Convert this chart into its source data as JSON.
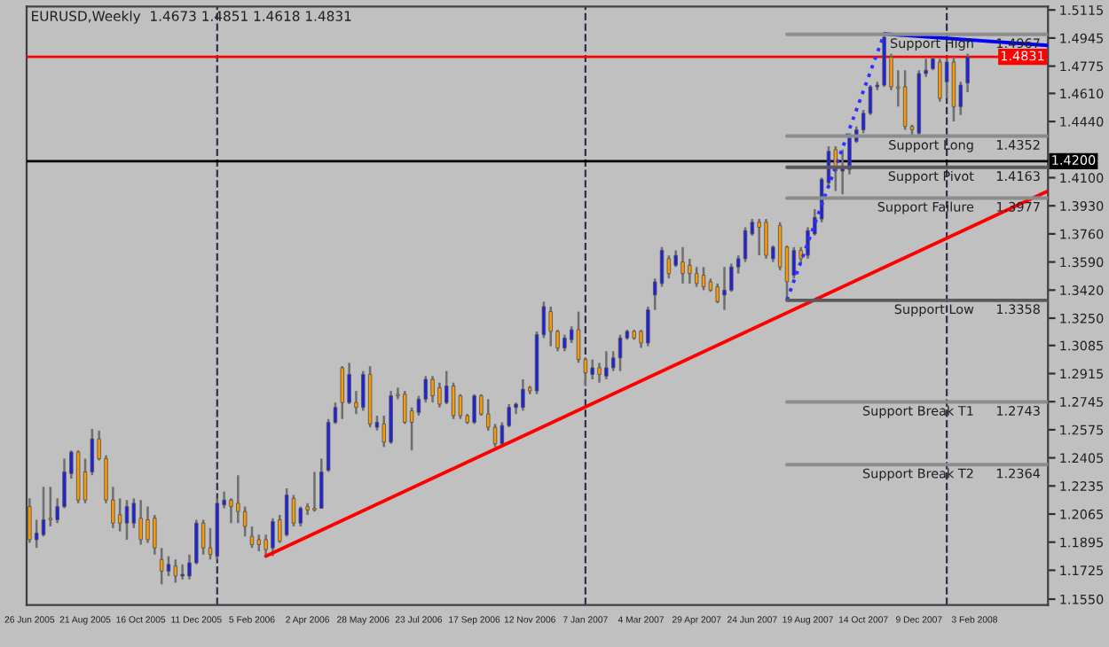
{
  "chart_data": {
    "type": "candlestick",
    "title": "EURUSD,Weekly  1.4673 1.4851 1.4618 1.4831",
    "x": [
      "2005-06-26",
      "2005-07-03",
      "2005-07-10",
      "2005-07-17",
      "2005-07-24",
      "2005-07-31",
      "2005-08-07",
      "2005-08-14",
      "2005-08-21",
      "2005-08-28",
      "2005-09-04",
      "2005-09-11",
      "2005-09-18",
      "2005-09-25",
      "2005-10-02",
      "2005-10-09",
      "2005-10-16",
      "2005-10-23",
      "2005-10-30",
      "2005-11-06",
      "2005-11-13",
      "2005-11-20",
      "2005-11-27",
      "2005-12-04",
      "2005-12-11",
      "2005-12-18",
      "2005-12-25",
      "2006-01-01",
      "2006-01-08",
      "2006-01-15",
      "2006-01-22",
      "2006-01-29",
      "2006-02-05",
      "2006-02-12",
      "2006-02-19",
      "2006-02-26",
      "2006-03-05",
      "2006-03-12",
      "2006-03-19",
      "2006-03-26",
      "2006-04-02",
      "2006-04-09",
      "2006-04-16",
      "2006-04-23",
      "2006-04-30",
      "2006-05-07",
      "2006-05-14",
      "2006-05-21",
      "2006-05-28",
      "2006-06-04",
      "2006-06-11",
      "2006-06-18",
      "2006-06-25",
      "2006-07-02",
      "2006-07-09",
      "2006-07-16",
      "2006-07-23",
      "2006-07-30",
      "2006-08-06",
      "2006-08-13",
      "2006-08-20",
      "2006-08-27",
      "2006-09-03",
      "2006-09-10",
      "2006-09-17",
      "2006-09-24",
      "2006-10-01",
      "2006-10-08",
      "2006-10-15",
      "2006-10-22",
      "2006-10-29",
      "2006-11-05",
      "2006-11-12",
      "2006-11-19",
      "2006-11-26",
      "2006-12-03",
      "2006-12-10",
      "2006-12-17",
      "2006-12-24",
      "2006-12-31",
      "2007-01-07",
      "2007-01-14",
      "2007-01-21",
      "2007-01-28",
      "2007-02-04",
      "2007-02-11",
      "2007-02-18",
      "2007-02-25",
      "2007-03-04",
      "2007-03-11",
      "2007-03-18",
      "2007-03-25",
      "2007-04-01",
      "2007-04-08",
      "2007-04-15",
      "2007-04-22",
      "2007-04-29",
      "2007-05-06",
      "2007-05-13",
      "2007-05-20",
      "2007-05-27",
      "2007-06-03",
      "2007-06-10",
      "2007-06-17",
      "2007-06-24",
      "2007-07-01",
      "2007-07-08",
      "2007-07-15",
      "2007-07-22",
      "2007-07-29",
      "2007-08-05",
      "2007-08-12",
      "2007-08-19",
      "2007-08-26",
      "2007-09-02",
      "2007-09-09",
      "2007-09-16",
      "2007-09-23",
      "2007-09-30",
      "2007-10-07",
      "2007-10-14",
      "2007-10-21",
      "2007-10-28",
      "2007-11-04",
      "2007-11-11",
      "2007-11-18",
      "2007-11-25",
      "2007-12-02",
      "2007-12-09",
      "2007-12-16",
      "2007-12-23",
      "2007-12-30",
      "2008-01-06",
      "2008-01-13",
      "2008-01-20",
      "2008-01-27"
    ],
    "ohlc": [
      [
        1.211,
        1.216,
        1.189,
        1.191
      ],
      [
        1.191,
        1.203,
        1.186,
        1.195
      ],
      [
        1.194,
        1.223,
        1.193,
        1.203
      ],
      [
        1.204,
        1.223,
        1.199,
        1.203
      ],
      [
        1.203,
        1.216,
        1.201,
        1.211
      ],
      [
        1.211,
        1.24,
        1.21,
        1.232
      ],
      [
        1.231,
        1.245,
        1.228,
        1.244
      ],
      [
        1.244,
        1.245,
        1.213,
        1.215
      ],
      [
        1.232,
        1.24,
        1.213,
        1.215
      ],
      [
        1.232,
        1.258,
        1.23,
        1.252
      ],
      [
        1.252,
        1.257,
        1.239,
        1.24
      ],
      [
        1.24,
        1.242,
        1.213,
        1.215
      ],
      [
        1.215,
        1.223,
        1.198,
        1.201
      ],
      [
        1.206,
        1.216,
        1.196,
        1.201
      ],
      [
        1.201,
        1.215,
        1.191,
        1.211
      ],
      [
        1.201,
        1.216,
        1.198,
        1.213
      ],
      [
        1.204,
        1.215,
        1.188,
        1.191
      ],
      [
        1.203,
        1.211,
        1.189,
        1.191
      ],
      [
        1.204,
        1.206,
        1.182,
        1.186
      ],
      [
        1.179,
        1.186,
        1.164,
        1.172
      ],
      [
        1.172,
        1.181,
        1.169,
        1.176
      ],
      [
        1.175,
        1.179,
        1.165,
        1.169
      ],
      [
        1.169,
        1.176,
        1.167,
        1.17
      ],
      [
        1.169,
        1.182,
        1.167,
        1.177
      ],
      [
        1.177,
        1.203,
        1.176,
        1.201
      ],
      [
        1.201,
        1.203,
        1.182,
        1.186
      ],
      [
        1.186,
        1.198,
        1.179,
        1.182
      ],
      [
        1.181,
        1.216,
        1.179,
        1.213
      ],
      [
        1.212,
        1.22,
        1.21,
        1.215
      ],
      [
        1.215,
        1.216,
        1.201,
        1.211
      ],
      [
        1.213,
        1.23,
        1.201,
        1.208
      ],
      [
        1.208,
        1.211,
        1.193,
        1.199
      ],
      [
        1.193,
        1.199,
        1.186,
        1.188
      ],
      [
        1.191,
        1.194,
        1.184,
        1.188
      ],
      [
        1.191,
        1.194,
        1.181,
        1.185
      ],
      [
        1.186,
        1.204,
        1.181,
        1.202
      ],
      [
        1.203,
        1.206,
        1.189,
        1.19
      ],
      [
        1.194,
        1.222,
        1.193,
        1.218
      ],
      [
        1.216,
        1.218,
        1.199,
        1.201
      ],
      [
        1.201,
        1.211,
        1.199,
        1.21
      ],
      [
        1.211,
        1.213,
        1.206,
        1.209
      ],
      [
        1.21,
        1.232,
        1.208,
        1.209
      ],
      [
        1.21,
        1.24,
        1.21,
        1.232
      ],
      [
        1.233,
        1.264,
        1.232,
        1.262
      ],
      [
        1.262,
        1.274,
        1.261,
        1.271
      ],
      [
        1.295,
        1.296,
        1.264,
        1.274
      ],
      [
        1.274,
        1.298,
        1.273,
        1.291
      ],
      [
        1.274,
        1.281,
        1.267,
        1.271
      ],
      [
        1.271,
        1.293,
        1.269,
        1.291
      ],
      [
        1.291,
        1.296,
        1.259,
        1.261
      ],
      [
        1.259,
        1.266,
        1.257,
        1.262
      ],
      [
        1.261,
        1.266,
        1.247,
        1.25
      ],
      [
        1.25,
        1.281,
        1.249,
        1.278
      ],
      [
        1.279,
        1.283,
        1.276,
        1.278
      ],
      [
        1.279,
        1.281,
        1.261,
        1.262
      ],
      [
        1.269,
        1.271,
        1.245,
        1.262
      ],
      [
        1.268,
        1.278,
        1.266,
        1.276
      ],
      [
        1.276,
        1.29,
        1.274,
        1.288
      ],
      [
        1.288,
        1.29,
        1.274,
        1.278
      ],
      [
        1.283,
        1.286,
        1.271,
        1.273
      ],
      [
        1.274,
        1.293,
        1.273,
        1.284
      ],
      [
        1.284,
        1.286,
        1.264,
        1.266
      ],
      [
        1.278,
        1.279,
        1.264,
        1.266
      ],
      [
        1.266,
        1.267,
        1.261,
        1.262
      ],
      [
        1.262,
        1.279,
        1.261,
        1.278
      ],
      [
        1.278,
        1.279,
        1.266,
        1.267
      ],
      [
        1.267,
        1.276,
        1.257,
        1.259
      ],
      [
        1.259,
        1.261,
        1.247,
        1.249
      ],
      [
        1.249,
        1.262,
        1.248,
        1.26
      ],
      [
        1.26,
        1.273,
        1.259,
        1.271
      ],
      [
        1.271,
        1.274,
        1.267,
        1.273
      ],
      [
        1.271,
        1.288,
        1.269,
        1.282
      ],
      [
        1.283,
        1.284,
        1.279,
        1.281
      ],
      [
        1.281,
        1.317,
        1.279,
        1.315
      ],
      [
        1.315,
        1.335,
        1.313,
        1.332
      ],
      [
        1.329,
        1.332,
        1.308,
        1.317
      ],
      [
        1.317,
        1.318,
        1.305,
        1.307
      ],
      [
        1.307,
        1.315,
        1.305,
        1.313
      ],
      [
        1.312,
        1.32,
        1.31,
        1.318
      ],
      [
        1.318,
        1.329,
        1.298,
        1.3
      ],
      [
        1.3,
        1.301,
        1.284,
        1.292
      ],
      [
        1.291,
        1.3,
        1.288,
        1.295
      ],
      [
        1.295,
        1.298,
        1.286,
        1.291
      ],
      [
        1.29,
        1.305,
        1.288,
        1.295
      ],
      [
        1.295,
        1.305,
        1.293,
        1.301
      ],
      [
        1.301,
        1.315,
        1.293,
        1.313
      ],
      [
        1.313,
        1.318,
        1.312,
        1.317
      ],
      [
        1.317,
        1.318,
        1.312,
        1.313
      ],
      [
        1.317,
        1.318,
        1.307,
        1.31
      ],
      [
        1.31,
        1.332,
        1.308,
        1.33
      ],
      [
        1.339,
        1.349,
        1.33,
        1.347
      ],
      [
        1.346,
        1.368,
        1.344,
        1.366
      ],
      [
        1.361,
        1.363,
        1.349,
        1.352
      ],
      [
        1.357,
        1.366,
        1.356,
        1.363
      ],
      [
        1.359,
        1.368,
        1.346,
        1.352
      ],
      [
        1.357,
        1.361,
        1.346,
        1.352
      ],
      [
        1.352,
        1.356,
        1.344,
        1.346
      ],
      [
        1.351,
        1.356,
        1.342,
        1.344
      ],
      [
        1.347,
        1.349,
        1.341,
        1.342
      ],
      [
        1.344,
        1.346,
        1.334,
        1.335
      ],
      [
        1.339,
        1.356,
        1.33,
        1.342
      ],
      [
        1.342,
        1.358,
        1.341,
        1.356
      ],
      [
        1.356,
        1.363,
        1.352,
        1.361
      ],
      [
        1.361,
        1.38,
        1.359,
        1.378
      ],
      [
        1.376,
        1.385,
        1.375,
        1.383
      ],
      [
        1.383,
        1.385,
        1.363,
        1.38
      ],
      [
        1.383,
        1.385,
        1.361,
        1.363
      ],
      [
        1.361,
        1.369,
        1.359,
        1.368
      ],
      [
        1.381,
        1.383,
        1.354,
        1.356
      ],
      [
        1.368,
        1.369,
        1.336,
        1.347
      ],
      [
        1.351,
        1.368,
        1.349,
        1.366
      ],
      [
        1.366,
        1.368,
        1.358,
        1.361
      ],
      [
        1.363,
        1.38,
        1.361,
        1.378
      ],
      [
        1.376,
        1.391,
        1.375,
        1.386
      ],
      [
        1.385,
        1.41,
        1.383,
        1.409
      ],
      [
        1.407,
        1.429,
        1.405,
        1.426
      ],
      [
        1.427,
        1.429,
        1.402,
        1.414
      ],
      [
        1.414,
        1.427,
        1.4,
        1.417
      ],
      [
        1.415,
        1.437,
        1.412,
        1.434
      ],
      [
        1.432,
        1.441,
        1.431,
        1.439
      ],
      [
        1.439,
        1.451,
        1.437,
        1.449
      ],
      [
        1.449,
        1.466,
        1.448,
        1.465
      ],
      [
        1.465,
        1.468,
        1.463,
        1.466
      ],
      [
        1.466,
        1.497,
        1.465,
        1.495
      ],
      [
        1.483,
        1.485,
        1.463,
        1.465
      ],
      [
        1.465,
        1.475,
        1.453,
        1.464
      ],
      [
        1.465,
        1.475,
        1.439,
        1.441
      ],
      [
        1.441,
        1.442,
        1.435,
        1.439
      ],
      [
        1.437,
        1.475,
        1.436,
        1.473
      ],
      [
        1.473,
        1.482,
        1.471,
        1.475
      ],
      [
        1.476,
        1.483,
        1.475,
        1.482
      ],
      [
        1.48,
        1.482,
        1.456,
        1.458
      ],
      [
        1.468,
        1.482,
        1.458,
        1.48
      ],
      [
        1.48,
        1.483,
        1.444,
        1.453
      ],
      [
        1.453,
        1.468,
        1.448,
        1.466
      ],
      [
        1.4673,
        1.4851,
        1.4618,
        1.4831
      ]
    ],
    "colors": [
      "#ff9900",
      "#2020e0",
      "#2020e0",
      "#ff9900",
      "#2020e0",
      "#2020e0",
      "#2020e0",
      "#ff9900",
      "#ff9900",
      "#2020e0",
      "#ff9900",
      "#ff9900",
      "#ff9900",
      "#ff9900",
      "#2020e0",
      "#2020e0",
      "#ff9900",
      "#ff9900",
      "#ff9900",
      "#ff9900",
      "#2020e0",
      "#ff9900",
      "#2020e0",
      "#2020e0",
      "#2020e0",
      "#ff9900",
      "#ff9900",
      "#2020e0",
      "#2020e0",
      "#ff9900",
      "#ff9900",
      "#ff9900",
      "#ff9900",
      "#ff9900",
      "#ff9900",
      "#2020e0",
      "#ff9900",
      "#2020e0",
      "#ff9900",
      "#2020e0",
      "#ff9900",
      "#ff9900",
      "#2020e0",
      "#2020e0",
      "#2020e0",
      "#ff9900",
      "#2020e0",
      "#ff9900",
      "#2020e0",
      "#ff9900",
      "#2020e0",
      "#ff9900",
      "#2020e0",
      "#ff9900",
      "#ff9900",
      "#ff9900",
      "#2020e0",
      "#2020e0",
      "#ff9900",
      "#ff9900",
      "#2020e0",
      "#ff9900",
      "#ff9900",
      "#ff9900",
      "#2020e0",
      "#ff9900",
      "#ff9900",
      "#ff9900",
      "#2020e0",
      "#2020e0",
      "#2020e0",
      "#2020e0",
      "#ff9900",
      "#2020e0",
      "#2020e0",
      "#ff9900",
      "#ff9900",
      "#2020e0",
      "#2020e0",
      "#ff9900",
      "#ff9900",
      "#2020e0",
      "#ff9900",
      "#2020e0",
      "#2020e0",
      "#2020e0",
      "#2020e0",
      "#ff9900",
      "#ff9900",
      "#2020e0",
      "#2020e0",
      "#2020e0",
      "#ff9900",
      "#2020e0",
      "#ff9900",
      "#ff9900",
      "#ff9900",
      "#ff9900",
      "#ff9900",
      "#ff9900",
      "#2020e0",
      "#2020e0",
      "#2020e0",
      "#2020e0",
      "#2020e0",
      "#ff9900",
      "#ff9900",
      "#2020e0",
      "#ff9900",
      "#ff9900",
      "#2020e0",
      "#ff9900",
      "#2020e0",
      "#2020e0",
      "#2020e0",
      "#2020e0",
      "#ff9900",
      "#2020e0",
      "#2020e0",
      "#2020e0",
      "#2020e0",
      "#2020e0",
      "#2020e0",
      "#2020e0",
      "#ff9900",
      "#ff9900",
      "#ff9900",
      "#ff9900",
      "#2020e0",
      "#2020e0",
      "#2020e0",
      "#ff9900",
      "#2020e0",
      "#ff9900",
      "#2020e0",
      "#2020e0"
    ],
    "series": [
      {
        "type": "line",
        "color": "#ff0000",
        "x": [
          "2006-02-19",
          "2008-04-17"
        ],
        "values": [
          1.181,
          1.402
        ]
      },
      {
        "type": "line",
        "color": "#0000ff",
        "x": [
          "2007-11-04",
          "2008-04-17"
        ],
        "values": [
          1.497,
          1.49
        ]
      },
      {
        "type": "line",
        "color": "#3030ff",
        "line_style": "dotted",
        "x": [
          "2007-07-29",
          "2007-11-04"
        ],
        "values": [
          1.336,
          1.497
        ]
      },
      {
        "type": "line",
        "name": "Support High",
        "color": "#8c8c8c",
        "x": [
          "2007-07-29",
          "2008-04-17"
        ],
        "values": [
          1.4967,
          1.4967
        ],
        "value_labels": [
          null,
          "1.4967"
        ]
      },
      {
        "type": "line",
        "name": "Support Long",
        "color": "#8c8c8c",
        "x": [
          "2007-07-29",
          "2008-04-17"
        ],
        "values": [
          1.4352,
          1.4352
        ],
        "value_labels": [
          null,
          "1.4352"
        ]
      },
      {
        "type": "line",
        "name": "Support Pivot",
        "color": "#5a5a5a",
        "x": [
          "2007-07-29",
          "2008-04-17"
        ],
        "values": [
          1.4163,
          1.4163
        ],
        "value_labels": [
          null,
          "1.4163"
        ]
      },
      {
        "type": "line",
        "name": "Support Failure",
        "color": "#8c8c8c",
        "x": [
          "2007-07-29",
          "2008-04-17"
        ],
        "values": [
          1.3977,
          1.3977
        ],
        "value_labels": [
          null,
          "1.3977"
        ]
      },
      {
        "type": "line",
        "name": "Support Low",
        "color": "#5a5a5a",
        "x": [
          "2007-07-29",
          "2008-04-17"
        ],
        "values": [
          1.3358,
          1.3358
        ],
        "value_labels": [
          null,
          "1.3358"
        ]
      },
      {
        "type": "line",
        "name": "Support Break T1",
        "color": "#8c8c8c",
        "x": [
          "2007-07-29",
          "2008-04-17"
        ],
        "values": [
          1.2743,
          1.2743
        ],
        "value_labels": [
          null,
          "1.2743"
        ]
      },
      {
        "type": "line",
        "name": "Support Break T2",
        "color": "#8c8c8c",
        "x": [
          "2007-07-29",
          "2008-04-17"
        ],
        "values": [
          1.2364,
          1.2364
        ],
        "value_labels": [
          null,
          "1.2364"
        ]
      }
    ],
    "ref_lines": [
      {
        "axis": "y",
        "value": 1.4831,
        "label": "1.4831",
        "color": "#ff0000"
      },
      {
        "axis": "y",
        "value": 1.42,
        "label": "1.4200",
        "color": "#000000"
      },
      {
        "axis": "x",
        "value": "2006-01-01",
        "color": "#303050",
        "line_style": "dashed"
      },
      {
        "axis": "x",
        "value": "2007-01-07",
        "color": "#303050",
        "line_style": "dashed"
      },
      {
        "axis": "x",
        "value": "2008-01-06",
        "color": "#303050",
        "line_style": "dashed"
      }
    ],
    "xlim": [
      "2005-06-23",
      "2008-04-17"
    ],
    "xticks": [
      {
        "value": "2005-06-26",
        "label": "26 Jun 2005"
      },
      {
        "value": "2005-08-21",
        "label": "21 Aug 2005"
      },
      {
        "value": "2005-10-16",
        "label": "16 Oct 2005"
      },
      {
        "value": "2005-12-11",
        "label": "11 Dec 2005"
      },
      {
        "value": "2006-02-05",
        "label": "5 Feb 2006"
      },
      {
        "value": "2006-04-02",
        "label": "2 Apr 2006"
      },
      {
        "value": "2006-05-28",
        "label": "28 May 2006"
      },
      {
        "value": "2006-07-23",
        "label": "23 Jul 2006"
      },
      {
        "value": "2006-09-17",
        "label": "17 Sep 2006"
      },
      {
        "value": "2006-11-12",
        "label": "12 Nov 2006"
      },
      {
        "value": "2007-01-07",
        "label": "7 Jan 2007"
      },
      {
        "value": "2007-03-04",
        "label": "4 Mar 2007"
      },
      {
        "value": "2007-04-29",
        "label": "29 Apr 2007"
      },
      {
        "value": "2007-06-24",
        "label": "24 Jun 2007"
      },
      {
        "value": "2007-08-19",
        "label": "19 Aug 2007"
      },
      {
        "value": "2007-10-14",
        "label": "14 Oct 2007"
      },
      {
        "value": "2007-12-09",
        "label": "9 Dec 2007"
      },
      {
        "value": "2008-02-03",
        "label": "3 Feb 2008"
      }
    ],
    "ylim": [
      1.1515,
      1.5136
    ],
    "yticks": [
      1.5115,
      1.4945,
      1.4775,
      {
        "value": 1.461,
        "label": "1.4610"
      },
      {
        "value": 1.444,
        "label": "1.4440"
      },
      {
        "value": 1.41,
        "label": "1.4100"
      },
      {
        "value": 1.393,
        "label": "1.3930"
      },
      {
        "value": 1.376,
        "label": "1.3760"
      },
      {
        "value": 1.359,
        "label": "1.3590"
      },
      {
        "value": 1.342,
        "label": "1.3420"
      },
      {
        "value": 1.325,
        "label": "1.3250"
      },
      1.3085,
      1.2915,
      1.2745,
      1.2575,
      1.2405,
      1.2235,
      1.2065,
      1.1895,
      1.1725,
      {
        "value": 1.155,
        "label": "1.1550"
      }
    ]
  }
}
